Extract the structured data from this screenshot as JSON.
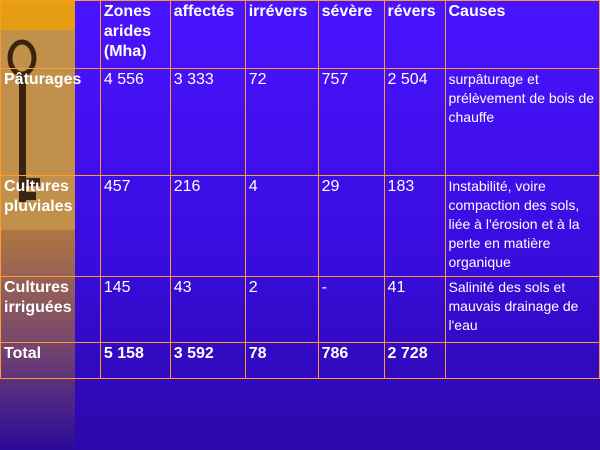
{
  "table": {
    "header": [
      "Zones arides (Mha)",
      "affectés",
      "irrévers",
      "sévère",
      "révers",
      "Causes"
    ],
    "rows": [
      {
        "label": "Pâturages",
        "values": [
          "4 556",
          "3 333",
          "72",
          "757",
          "2 504"
        ],
        "causes": "surpâturage et prélèvement de bois de chauffe"
      },
      {
        "label": "Cultures pluviales",
        "values": [
          "457",
          "216",
          "4",
          "29",
          "183"
        ],
        "causes": "Instabilité, voire compaction des sols, liée à l'érosion et à la perte en matière organique"
      },
      {
        "label": "Cultures irriguées",
        "values": [
          "145",
          "43",
          "2",
          "-",
          "41"
        ],
        "causes": "Salinité des sols et mauvais drainage de l'eau"
      }
    ],
    "total": {
      "label": "Total",
      "values": [
        "5 158",
        "3 592",
        "78",
        "786",
        "2 728"
      ]
    }
  }
}
